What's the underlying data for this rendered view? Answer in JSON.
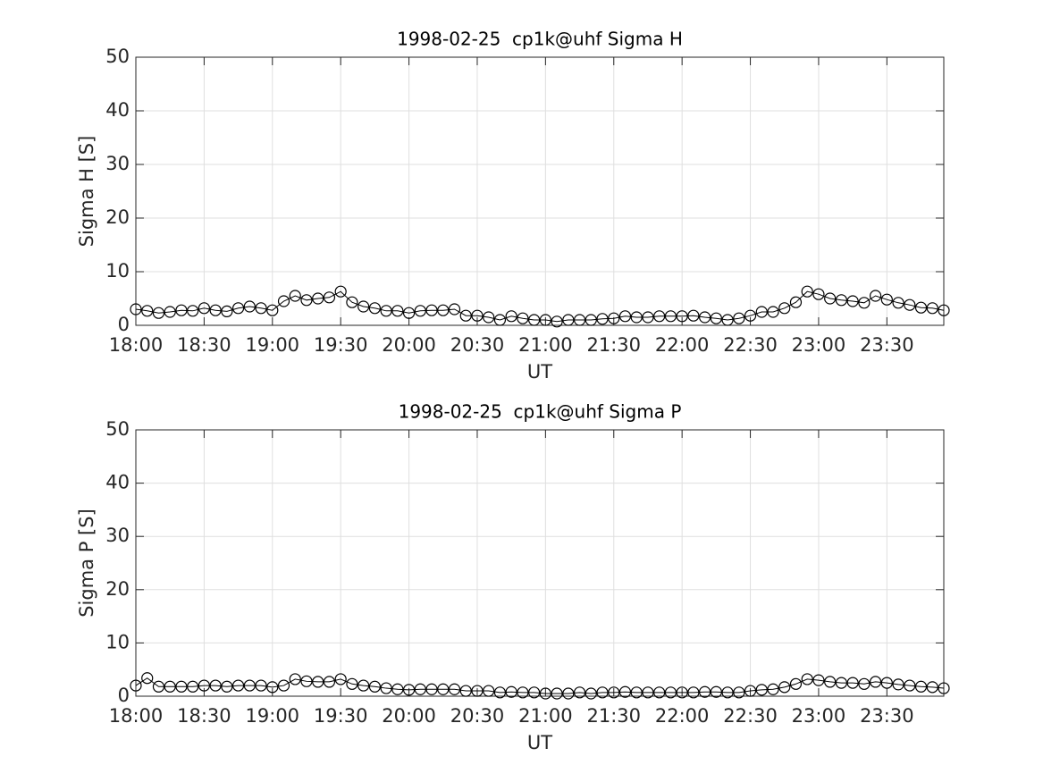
{
  "chart_data": [
    {
      "type": "line",
      "title": "1998-02-25  cp1k@uhf Sigma H",
      "xlabel": "UT",
      "ylabel": "Sigma H [S]",
      "x": [
        "18:00",
        "18:05",
        "18:10",
        "18:15",
        "18:20",
        "18:25",
        "18:30",
        "18:35",
        "18:40",
        "18:45",
        "18:50",
        "18:55",
        "19:00",
        "19:05",
        "19:10",
        "19:15",
        "19:20",
        "19:25",
        "19:30",
        "19:35",
        "19:40",
        "19:45",
        "19:50",
        "19:55",
        "20:00",
        "20:05",
        "20:10",
        "20:15",
        "20:20",
        "20:25",
        "20:30",
        "20:35",
        "20:40",
        "20:45",
        "20:50",
        "20:55",
        "21:00",
        "21:05",
        "21:10",
        "21:15",
        "21:20",
        "21:25",
        "21:30",
        "21:35",
        "21:40",
        "21:45",
        "21:50",
        "21:55",
        "22:00",
        "22:05",
        "22:10",
        "22:15",
        "22:20",
        "22:25",
        "22:30",
        "22:35",
        "22:40",
        "22:45",
        "22:50",
        "22:55",
        "23:00",
        "23:05",
        "23:10",
        "23:15",
        "23:20",
        "23:25",
        "23:30",
        "23:35",
        "23:40",
        "23:45",
        "23:50",
        "23:55"
      ],
      "series": [
        {
          "name": "Sigma H",
          "color": "#000000",
          "marker": "circle",
          "values": [
            3.0,
            2.7,
            2.3,
            2.5,
            2.8,
            2.7,
            3.2,
            2.8,
            2.6,
            3.2,
            3.5,
            3.2,
            2.8,
            4.5,
            5.5,
            4.7,
            5.0,
            5.2,
            6.3,
            4.3,
            3.5,
            3.2,
            2.7,
            2.7,
            2.3,
            2.7,
            2.8,
            2.8,
            3.0,
            1.8,
            1.8,
            1.5,
            1.0,
            1.7,
            1.3,
            1.0,
            1.0,
            0.7,
            1.0,
            1.0,
            1.0,
            1.2,
            1.3,
            1.7,
            1.5,
            1.5,
            1.7,
            1.7,
            1.7,
            1.8,
            1.5,
            1.3,
            1.0,
            1.3,
            1.8,
            2.5,
            2.5,
            3.2,
            4.3,
            6.3,
            5.8,
            5.0,
            4.7,
            4.5,
            4.2,
            5.5,
            4.8,
            4.2,
            3.8,
            3.3,
            3.2,
            2.8
          ]
        }
      ],
      "xlim": [
        "18:00",
        "23:55"
      ],
      "xticks": [
        "18:00",
        "18:30",
        "19:00",
        "19:30",
        "20:00",
        "20:30",
        "21:00",
        "21:30",
        "22:00",
        "22:30",
        "23:00",
        "23:30"
      ],
      "ylim": [
        0,
        50
      ],
      "yticks": [
        0,
        10,
        20,
        30,
        40,
        50
      ],
      "grid": true
    },
    {
      "type": "line",
      "title": "1998-02-25  cp1k@uhf Sigma P",
      "xlabel": "UT",
      "ylabel": "Sigma P [S]",
      "x": [
        "18:00",
        "18:05",
        "18:10",
        "18:15",
        "18:20",
        "18:25",
        "18:30",
        "18:35",
        "18:40",
        "18:45",
        "18:50",
        "18:55",
        "19:00",
        "19:05",
        "19:10",
        "19:15",
        "19:20",
        "19:25",
        "19:30",
        "19:35",
        "19:40",
        "19:45",
        "19:50",
        "19:55",
        "20:00",
        "20:05",
        "20:10",
        "20:15",
        "20:20",
        "20:25",
        "20:30",
        "20:35",
        "20:40",
        "20:45",
        "20:50",
        "20:55",
        "21:00",
        "21:05",
        "21:10",
        "21:15",
        "21:20",
        "21:25",
        "21:30",
        "21:35",
        "21:40",
        "21:45",
        "21:50",
        "21:55",
        "22:00",
        "22:05",
        "22:10",
        "22:15",
        "22:20",
        "22:25",
        "22:30",
        "22:35",
        "22:40",
        "22:45",
        "22:50",
        "22:55",
        "23:00",
        "23:05",
        "23:10",
        "23:15",
        "23:20",
        "23:25",
        "23:30",
        "23:35",
        "23:40",
        "23:45",
        "23:50",
        "23:55"
      ],
      "series": [
        {
          "name": "Sigma P",
          "color": "#000000",
          "marker": "circle",
          "values": [
            2.0,
            3.4,
            1.8,
            1.8,
            1.8,
            1.8,
            2.0,
            2.0,
            1.8,
            2.0,
            2.0,
            2.0,
            1.7,
            2.0,
            3.2,
            2.8,
            2.7,
            2.7,
            3.2,
            2.3,
            2.0,
            1.8,
            1.5,
            1.3,
            1.2,
            1.3,
            1.3,
            1.3,
            1.3,
            1.0,
            1.0,
            1.0,
            0.7,
            0.8,
            0.7,
            0.7,
            0.5,
            0.5,
            0.5,
            0.7,
            0.5,
            0.7,
            0.7,
            0.8,
            0.7,
            0.7,
            0.7,
            0.7,
            0.7,
            0.7,
            0.8,
            0.8,
            0.7,
            0.7,
            1.0,
            1.2,
            1.3,
            1.7,
            2.3,
            3.2,
            3.0,
            2.7,
            2.5,
            2.5,
            2.3,
            2.7,
            2.5,
            2.2,
            2.0,
            1.8,
            1.7,
            1.5
          ]
        }
      ],
      "xlim": [
        "18:00",
        "23:55"
      ],
      "xticks": [
        "18:00",
        "18:30",
        "19:00",
        "19:30",
        "20:00",
        "20:30",
        "21:00",
        "21:30",
        "22:00",
        "22:30",
        "23:00",
        "23:30"
      ],
      "ylim": [
        0,
        50
      ],
      "yticks": [
        0,
        10,
        20,
        30,
        40,
        50
      ],
      "grid": true
    }
  ]
}
